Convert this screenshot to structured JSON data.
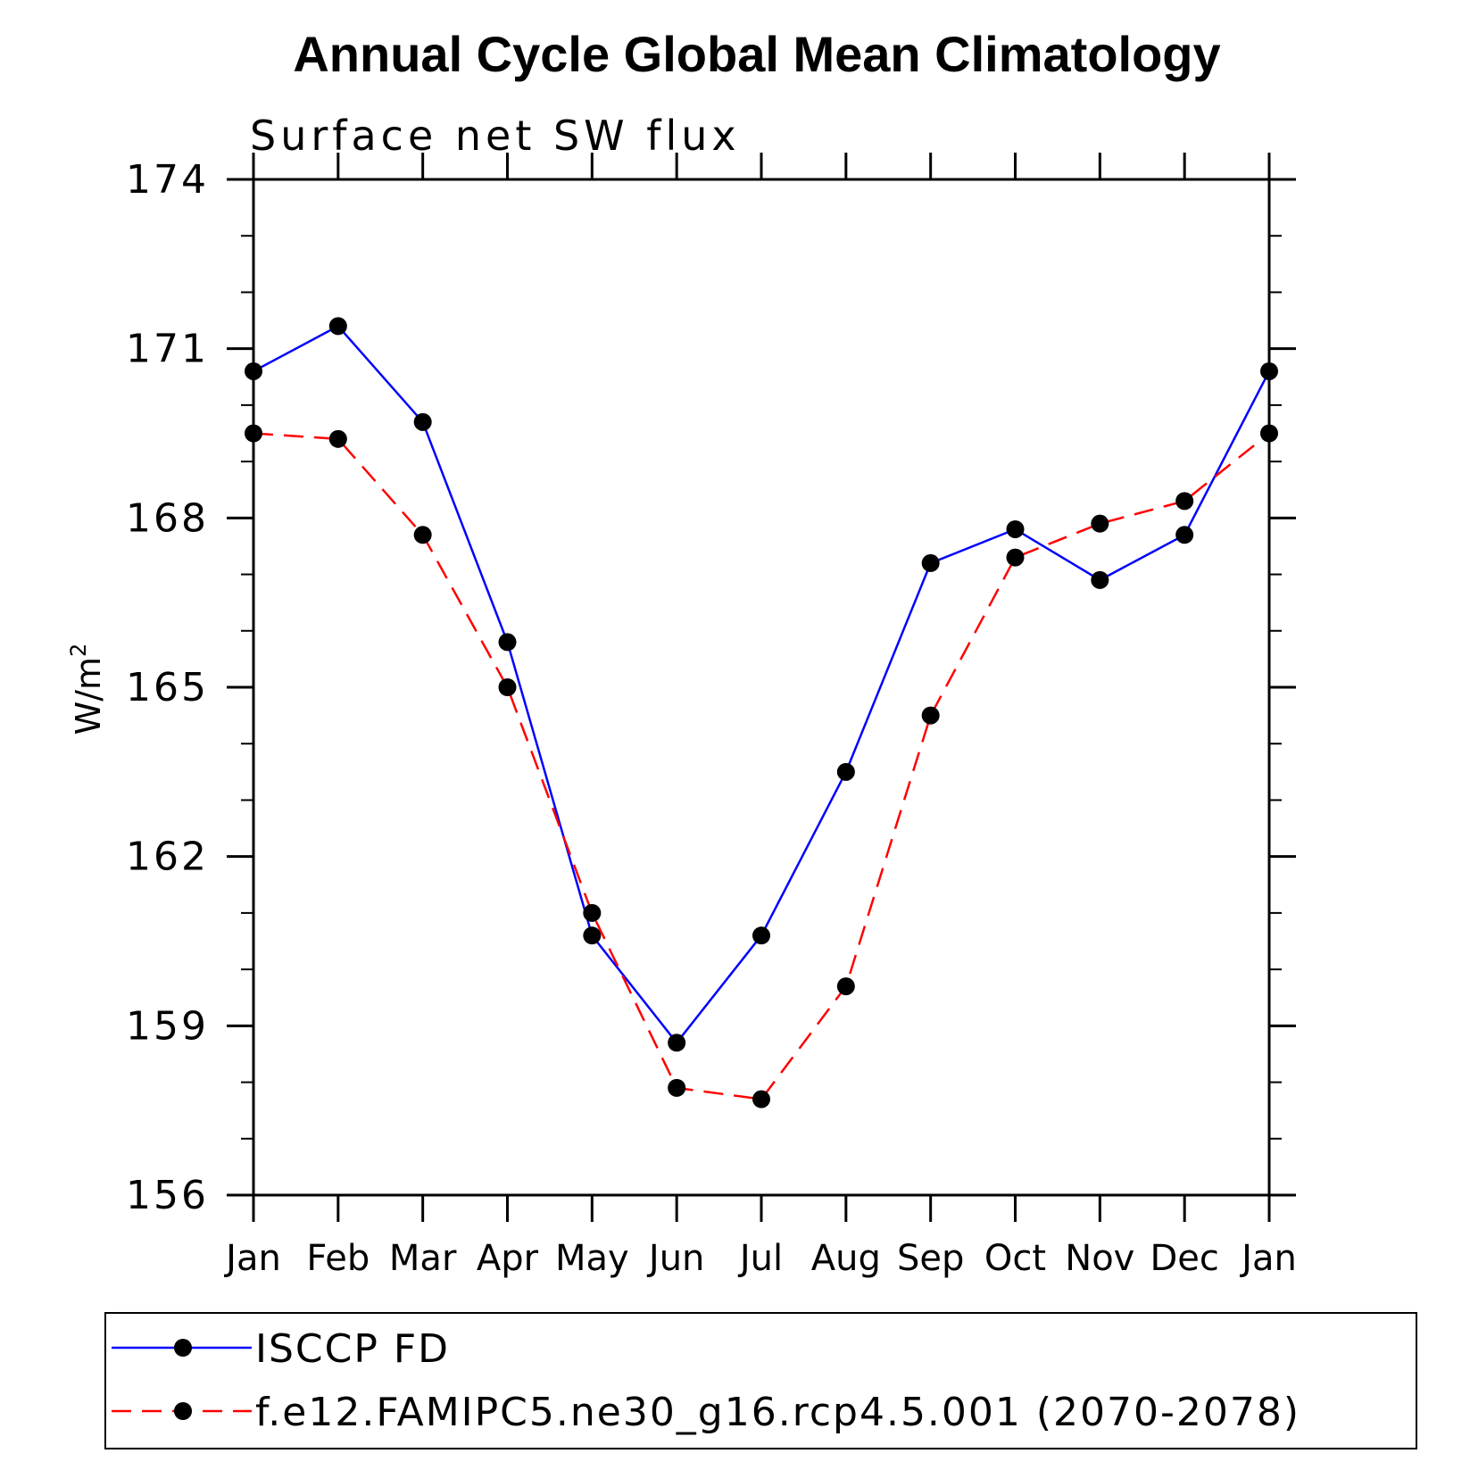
{
  "chart_data": {
    "type": "line",
    "title": "Annual Cycle Global Mean Climatology",
    "subtitle": "Surface net SW flux",
    "ylabel": "W/m",
    "ylabel_superscript": "2",
    "ylim": [
      156,
      174
    ],
    "yticks": [
      156,
      159,
      162,
      165,
      168,
      171,
      174
    ],
    "categories": [
      "Jan",
      "Feb",
      "Mar",
      "Apr",
      "May",
      "Jun",
      "Jul",
      "Aug",
      "Sep",
      "Oct",
      "Nov",
      "Dec",
      "Jan"
    ],
    "series": [
      {
        "name": "ISCCP FD",
        "color": "#0000ff",
        "dash": "solid",
        "values": [
          170.6,
          171.4,
          169.7,
          165.8,
          160.6,
          158.7,
          160.6,
          163.5,
          167.2,
          167.8,
          166.9,
          167.7,
          170.6
        ]
      },
      {
        "name": "f.e12.FAMIPC5.ne30_g16.rcp4.5.001 (2070-2078)",
        "color": "#ff0000",
        "dash": "dashed",
        "values": [
          169.5,
          169.4,
          167.7,
          165.0,
          161.0,
          157.9,
          157.7,
          159.7,
          164.5,
          167.3,
          167.9,
          168.3,
          169.5
        ]
      }
    ],
    "legend_position": "bottom"
  }
}
